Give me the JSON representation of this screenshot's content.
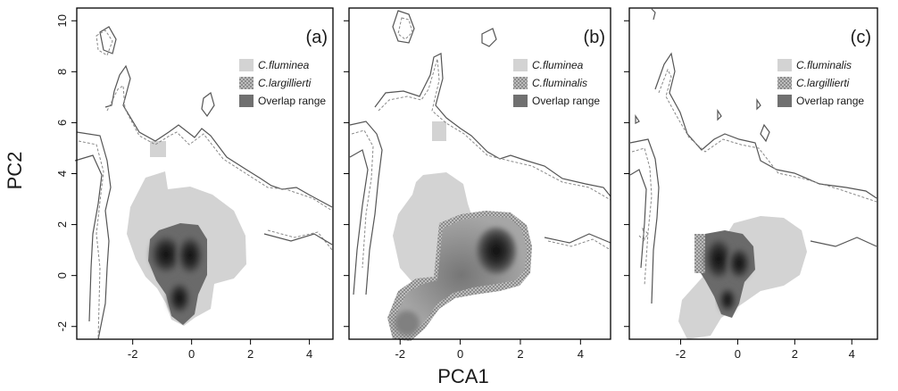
{
  "figure": {
    "xlabel": "PCA1",
    "ylabel": "PC2"
  },
  "chart_data": [
    {
      "type": "area",
      "panel_label": "(a)",
      "xlim": [
        -3.9,
        4.8
      ],
      "ylim": [
        -2.5,
        10.5
      ],
      "xticks": [
        -2,
        0,
        2,
        4
      ],
      "yticks": [
        -2,
        0,
        2,
        4,
        6,
        8,
        10
      ],
      "legend_position": "top-right",
      "legend": [
        {
          "label": "C.fluminea",
          "style": "light"
        },
        {
          "label": "C.largillierti",
          "style": "medium"
        },
        {
          "label": "Overlap range",
          "style": "dark"
        }
      ],
      "colors": {
        "light": "#d3d3d3",
        "medium": "#a9a9a9",
        "dark": "#707070"
      }
    },
    {
      "type": "area",
      "panel_label": "(b)",
      "xlim": [
        -3.7,
        5.0
      ],
      "ylim": [
        -2.5,
        10.5
      ],
      "xticks": [
        -2,
        0,
        2,
        4
      ],
      "yticks": [
        -2,
        0,
        2,
        4,
        6,
        8,
        10
      ],
      "legend_position": "top-right",
      "legend": [
        {
          "label": "C.fluminea",
          "style": "light"
        },
        {
          "label": "C.fluminalis",
          "style": "medium"
        },
        {
          "label": "Overlap range",
          "style": "dark"
        }
      ],
      "colors": {
        "light": "#d3d3d3",
        "medium": "#a9a9a9",
        "dark": "#707070"
      }
    },
    {
      "type": "area",
      "panel_label": "(c)",
      "xlim": [
        -3.8,
        4.9
      ],
      "ylim": [
        -2.5,
        10.5
      ],
      "xticks": [
        -2,
        0,
        2,
        4
      ],
      "yticks": [
        -2,
        0,
        2,
        4,
        6,
        8,
        10
      ],
      "legend_position": "top-right",
      "legend": [
        {
          "label": "C.fluminalis",
          "style": "light"
        },
        {
          "label": "C.largillierti",
          "style": "medium"
        },
        {
          "label": "Overlap range",
          "style": "dark"
        }
      ],
      "colors": {
        "light": "#d3d3d3",
        "medium": "#a9a9a9",
        "dark": "#707070"
      }
    }
  ]
}
